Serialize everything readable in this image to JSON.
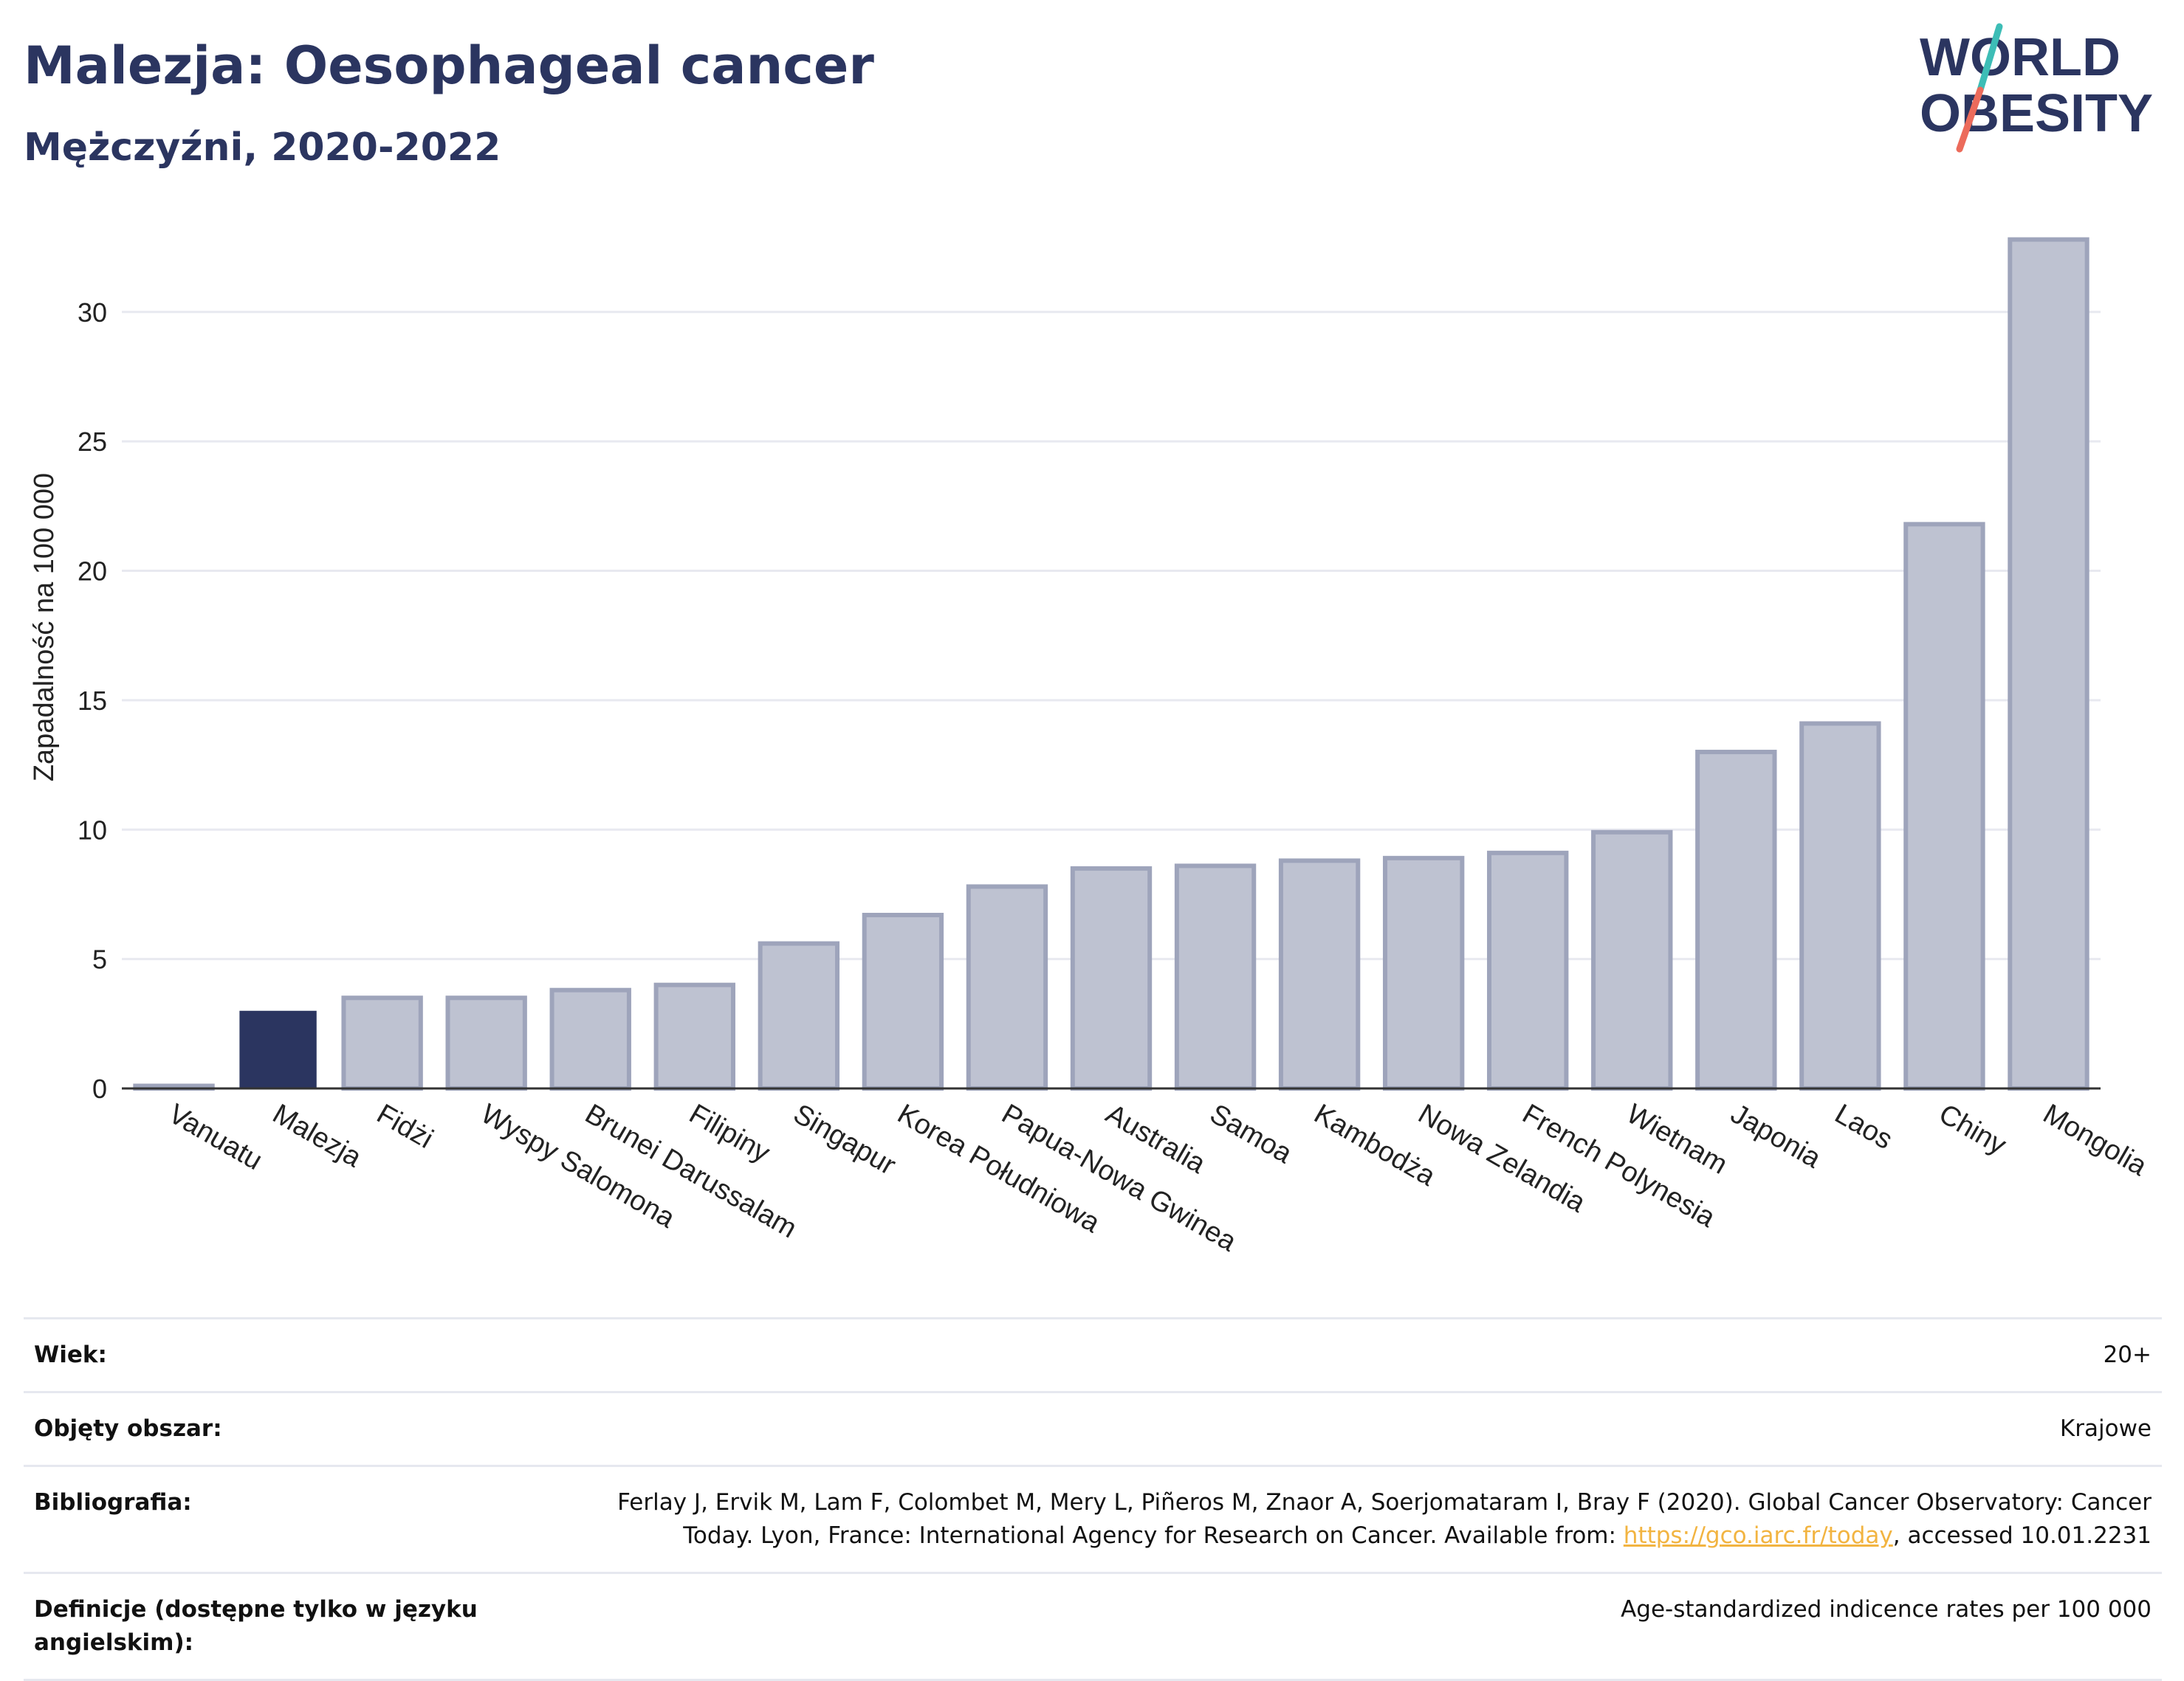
{
  "header": {
    "title": "Malezja: Oesophageal cancer",
    "subtitle": "Mężczyźni, 2020-2022"
  },
  "logo": {
    "line1": "WORLD",
    "line2": "OBESITY",
    "accent_teal": "#3dbdb6",
    "accent_coral": "#ec6b5b",
    "text_color": "#2b3560"
  },
  "chart_data": {
    "type": "bar",
    "ylabel": "Zapadalność na 100 000",
    "ylim": [
      0,
      33.5
    ],
    "yticks": [
      0,
      5,
      10,
      15,
      20,
      25,
      30
    ],
    "grid": true,
    "categories": [
      "Vanuatu",
      "Malezja",
      "Fidżi",
      "Wyspy Salomona",
      "Brunei Darussalam",
      "Filipiny",
      "Singapur",
      "Korea Południowa",
      "Papua-Nowa Gwinea",
      "Australia",
      "Samoa",
      "Kambodża",
      "Nowa Zelandia",
      "French Polynesia",
      "Wietnam",
      "Japonia",
      "Laos",
      "Chiny",
      "Mongolia"
    ],
    "values": [
      0.1,
      3.0,
      3.5,
      3.5,
      3.8,
      4.0,
      5.6,
      6.7,
      7.8,
      8.5,
      8.6,
      8.8,
      8.9,
      9.1,
      9.9,
      13.0,
      14.1,
      21.8,
      32.8
    ],
    "highlight": "Malezja",
    "colors": {
      "bar": "#bec2d1",
      "bar_border": "#9ea4bb",
      "highlight": "#2b3560",
      "grid": "#e8e9f0",
      "axis": "#333333"
    }
  },
  "meta": {
    "rows": [
      {
        "label": "Wiek:",
        "value": "20+"
      },
      {
        "label": "Objęty obszar:",
        "value": "Krajowe"
      },
      {
        "label": "Bibliografia:",
        "value_line1": "Ferlay J, Ervik M, Lam F, Colombet M, Mery L, Piñeros M, Znaor A, Soerjomataram I, Bray F (2020). Global Cancer Observatory: Cancer",
        "value_line2_pre": "Today. Lyon, France: International Agency for Research on Cancer. Available from: ",
        "link": "https://gco.iarc.fr/today",
        "value_line2_post": ", accessed 10.01.2231"
      },
      {
        "label": "Definicje (dostępne tylko w języku angielskim):",
        "value": "Age-standardized indicence rates per 100 000"
      }
    ]
  }
}
